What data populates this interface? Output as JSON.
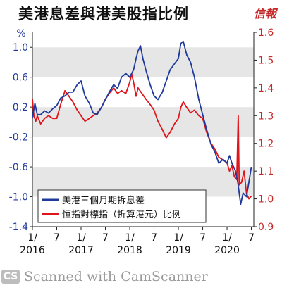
{
  "header": {
    "title": "美港息差與港美股指比例",
    "brand": "信報"
  },
  "watermark": {
    "logo": "CS",
    "text": "Scanned with CamScanner"
  },
  "colors": {
    "blue_series": "#1f3a9c",
    "red_series": "#e0141b",
    "band": "#e6e6e6",
    "left_axis": "#1f3a9c",
    "right_axis": "#c62828"
  },
  "chart_data": {
    "type": "line",
    "left_axis_label": "%",
    "left_ylim": [
      -1.4,
      1.2
    ],
    "right_ylim": [
      0.9,
      1.6
    ],
    "left_ticks": [
      "1.0",
      "0.6",
      "0.2",
      "-0.2",
      "-0.6",
      "-1.0",
      "-1.4"
    ],
    "left_tick_values": [
      1.0,
      0.6,
      0.2,
      -0.2,
      -0.6,
      -1.0,
      -1.4
    ],
    "right_ticks": [
      "1.6",
      "1.5",
      "1.4",
      "1.3",
      "1.2",
      "1.1",
      "1.0",
      "0.9"
    ],
    "right_tick_values": [
      1.6,
      1.5,
      1.4,
      1.3,
      1.2,
      1.1,
      1.0,
      0.9
    ],
    "x_ticks": [
      {
        "label": "1/",
        "year": "2016",
        "t": 2016.0
      },
      {
        "label": "7",
        "year": "",
        "t": 2016.5
      },
      {
        "label": "1/",
        "year": "2017",
        "t": 2017.0
      },
      {
        "label": "7",
        "year": "",
        "t": 2017.5
      },
      {
        "label": "1/",
        "year": "2018",
        "t": 2018.0
      },
      {
        "label": "7",
        "year": "",
        "t": 2018.5
      },
      {
        "label": "1/",
        "year": "2019",
        "t": 2019.0
      },
      {
        "label": "7",
        "year": "",
        "t": 2019.5
      },
      {
        "label": "1/",
        "year": "2020",
        "t": 2020.0
      },
      {
        "label": "7",
        "year": "",
        "t": 2020.5
      }
    ],
    "xlim": [
      2016.0,
      2020.55
    ],
    "legend_position": "bottom-left",
    "series": [
      {
        "name": "美港三個月期拆息差",
        "axis": "left",
        "points": [
          [
            2016.0,
            0.05
          ],
          [
            2016.05,
            0.25
          ],
          [
            2016.1,
            0.1
          ],
          [
            2016.17,
            0.1
          ],
          [
            2016.25,
            0.15
          ],
          [
            2016.33,
            0.12
          ],
          [
            2016.42,
            0.18
          ],
          [
            2016.5,
            0.22
          ],
          [
            2016.58,
            0.32
          ],
          [
            2016.67,
            0.35
          ],
          [
            2016.75,
            0.4
          ],
          [
            2016.83,
            0.4
          ],
          [
            2016.92,
            0.5
          ],
          [
            2017.0,
            0.55
          ],
          [
            2017.08,
            0.35
          ],
          [
            2017.17,
            0.25
          ],
          [
            2017.25,
            0.12
          ],
          [
            2017.33,
            0.1
          ],
          [
            2017.42,
            0.2
          ],
          [
            2017.5,
            0.3
          ],
          [
            2017.58,
            0.4
          ],
          [
            2017.67,
            0.5
          ],
          [
            2017.75,
            0.45
          ],
          [
            2017.83,
            0.6
          ],
          [
            2017.92,
            0.65
          ],
          [
            2018.0,
            0.6
          ],
          [
            2018.08,
            0.7
          ],
          [
            2018.13,
            0.85
          ],
          [
            2018.17,
            0.95
          ],
          [
            2018.22,
            1.02
          ],
          [
            2018.27,
            0.85
          ],
          [
            2018.33,
            0.7
          ],
          [
            2018.42,
            0.5
          ],
          [
            2018.5,
            0.35
          ],
          [
            2018.58,
            0.3
          ],
          [
            2018.67,
            0.4
          ],
          [
            2018.75,
            0.55
          ],
          [
            2018.83,
            0.7
          ],
          [
            2018.92,
            0.78
          ],
          [
            2019.0,
            0.85
          ],
          [
            2019.05,
            1.05
          ],
          [
            2019.1,
            1.08
          ],
          [
            2019.17,
            0.9
          ],
          [
            2019.25,
            0.8
          ],
          [
            2019.33,
            0.6
          ],
          [
            2019.42,
            0.3
          ],
          [
            2019.5,
            0.1
          ],
          [
            2019.58,
            -0.1
          ],
          [
            2019.67,
            -0.3
          ],
          [
            2019.75,
            -0.4
          ],
          [
            2019.83,
            -0.55
          ],
          [
            2019.92,
            -0.5
          ],
          [
            2020.0,
            -0.55
          ],
          [
            2020.05,
            -0.45
          ],
          [
            2020.1,
            -0.55
          ],
          [
            2020.17,
            -0.65
          ],
          [
            2020.22,
            -0.8
          ],
          [
            2020.28,
            -1.1
          ],
          [
            2020.33,
            -0.95
          ],
          [
            2020.4,
            -1.0
          ],
          [
            2020.45,
            -0.8
          ],
          [
            2020.5,
            -0.6
          ]
        ]
      },
      {
        "name": "恒指對標指（折算港元）比例",
        "axis": "right",
        "points": [
          [
            2016.0,
            1.36
          ],
          [
            2016.03,
            1.3
          ],
          [
            2016.07,
            1.28
          ],
          [
            2016.1,
            1.3
          ],
          [
            2016.17,
            1.27
          ],
          [
            2016.25,
            1.29
          ],
          [
            2016.33,
            1.3
          ],
          [
            2016.42,
            1.29
          ],
          [
            2016.5,
            1.29
          ],
          [
            2016.58,
            1.34
          ],
          [
            2016.67,
            1.39
          ],
          [
            2016.75,
            1.37
          ],
          [
            2016.83,
            1.35
          ],
          [
            2016.92,
            1.32
          ],
          [
            2017.0,
            1.3
          ],
          [
            2017.08,
            1.28
          ],
          [
            2017.17,
            1.29
          ],
          [
            2017.25,
            1.3
          ],
          [
            2017.33,
            1.31
          ],
          [
            2017.42,
            1.33
          ],
          [
            2017.5,
            1.36
          ],
          [
            2017.58,
            1.38
          ],
          [
            2017.67,
            1.4
          ],
          [
            2017.75,
            1.38
          ],
          [
            2017.83,
            1.39
          ],
          [
            2017.92,
            1.38
          ],
          [
            2018.0,
            1.42
          ],
          [
            2018.04,
            1.45
          ],
          [
            2018.08,
            1.42
          ],
          [
            2018.13,
            1.37
          ],
          [
            2018.17,
            1.4
          ],
          [
            2018.25,
            1.38
          ],
          [
            2018.33,
            1.36
          ],
          [
            2018.42,
            1.34
          ],
          [
            2018.5,
            1.32
          ],
          [
            2018.58,
            1.28
          ],
          [
            2018.67,
            1.25
          ],
          [
            2018.75,
            1.22
          ],
          [
            2018.83,
            1.24
          ],
          [
            2018.92,
            1.27
          ],
          [
            2019.0,
            1.29
          ],
          [
            2019.05,
            1.33
          ],
          [
            2019.1,
            1.35
          ],
          [
            2019.17,
            1.33
          ],
          [
            2019.25,
            1.31
          ],
          [
            2019.33,
            1.32
          ],
          [
            2019.42,
            1.3
          ],
          [
            2019.5,
            1.29
          ],
          [
            2019.58,
            1.24
          ],
          [
            2019.67,
            1.2
          ],
          [
            2019.75,
            1.18
          ],
          [
            2019.83,
            1.15
          ],
          [
            2019.92,
            1.14
          ],
          [
            2020.0,
            1.13
          ],
          [
            2020.05,
            1.1
          ],
          [
            2020.1,
            1.12
          ],
          [
            2020.15,
            1.08
          ],
          [
            2020.2,
            1.07
          ],
          [
            2020.23,
            1.3
          ],
          [
            2020.25,
            1.05
          ],
          [
            2020.3,
            1.06
          ],
          [
            2020.35,
            1.1
          ],
          [
            2020.4,
            1.02
          ],
          [
            2020.45,
            1.0
          ],
          [
            2020.5,
            1.01
          ]
        ]
      }
    ]
  }
}
